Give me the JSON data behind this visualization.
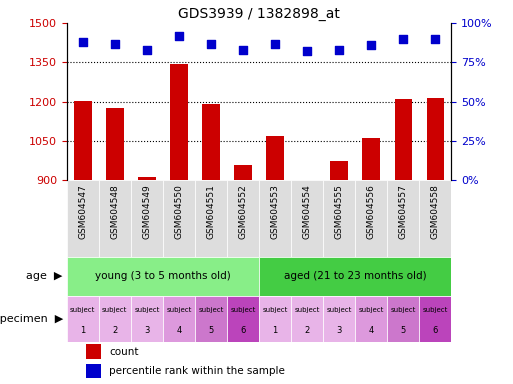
{
  "title": "GDS3939 / 1382898_at",
  "samples": [
    "GSM604547",
    "GSM604548",
    "GSM604549",
    "GSM604550",
    "GSM604551",
    "GSM604552",
    "GSM604553",
    "GSM604554",
    "GSM604555",
    "GSM604556",
    "GSM604557",
    "GSM604558"
  ],
  "counts": [
    1202,
    1178,
    912,
    1345,
    1193,
    960,
    1068,
    902,
    975,
    1062,
    1212,
    1215
  ],
  "percentile_ranks": [
    88,
    87,
    83,
    92,
    87,
    83,
    87,
    82,
    83,
    86,
    90,
    90
  ],
  "ylim_left": [
    900,
    1500
  ],
  "ylim_right": [
    0,
    100
  ],
  "yticks_left": [
    900,
    1050,
    1200,
    1350,
    1500
  ],
  "yticks_right": [
    0,
    25,
    50,
    75,
    100
  ],
  "bar_color": "#cc0000",
  "dot_color": "#0000cc",
  "age_groups": [
    {
      "label": "young (3 to 5 months old)",
      "start": 0,
      "end": 6,
      "color": "#88ee88"
    },
    {
      "label": "aged (21 to 23 months old)",
      "start": 6,
      "end": 12,
      "color": "#44cc44"
    }
  ],
  "specimen_colors": [
    "#e8b4e8",
    "#e8b4e8",
    "#e8b4e8",
    "#dd99dd",
    "#cc77cc",
    "#bb44bb",
    "#e8b4e8",
    "#e8b4e8",
    "#e8b4e8",
    "#dd99dd",
    "#cc77cc",
    "#bb44bb"
  ],
  "age_label": "age",
  "specimen_label": "specimen",
  "legend_count_label": "count",
  "legend_pct_label": "percentile rank within the sample",
  "bar_width": 0.55,
  "tick_label_color_left": "#cc0000",
  "tick_label_color_right": "#0000cc"
}
